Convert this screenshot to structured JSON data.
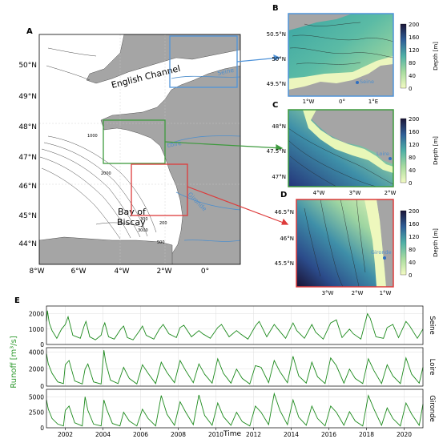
{
  "panels": {
    "A": "A",
    "B": "B",
    "C": "C",
    "D": "D",
    "E": "E"
  },
  "map_a": {
    "lon_ticks": [
      "8°W",
      "6°W",
      "4°W",
      "2°W",
      "0°"
    ],
    "lat_ticks": [
      "44°N",
      "45°N",
      "46°N",
      "47°N",
      "48°N",
      "49°N",
      "50°N"
    ],
    "labels": {
      "channel": "English Channel",
      "bay1": "Bay of",
      "bay2": "Biscay",
      "loire": "Loire",
      "gironde": "Gironde",
      "seine": "Seine"
    },
    "box_colors": {
      "B": "#4f93d9",
      "C": "#3d9a3d",
      "D": "#dd3b3b"
    },
    "contours": [
      "200",
      "300",
      "500",
      "1000",
      "2000",
      "3000"
    ]
  },
  "inset_b": {
    "lon_ticks": [
      "1°W",
      "0°",
      "1°E"
    ],
    "lat_ticks": [
      "49.5°N",
      "50°N",
      "50.5°N"
    ],
    "river": "Seine",
    "cbar_ticks": [
      "0",
      "40",
      "80",
      "120",
      "160",
      "200"
    ],
    "cbar_label": "Depth [m]"
  },
  "inset_c": {
    "lon_ticks": [
      "4°W",
      "3°W",
      "2°W"
    ],
    "lat_ticks": [
      "47°N",
      "47.5°N",
      "48°N"
    ],
    "river": "Loire",
    "cbar_ticks": [
      "0",
      "40",
      "80",
      "120",
      "160",
      "200"
    ],
    "cbar_label": "Depth [m]"
  },
  "inset_d": {
    "lon_ticks": [
      "3°W",
      "2°W",
      "1°W"
    ],
    "lat_ticks": [
      "45.5°N",
      "46°N",
      "46.5°N"
    ],
    "river": "Gironde",
    "cbar_ticks": [
      "0",
      "40",
      "80",
      "120",
      "160",
      "200"
    ],
    "cbar_label": "Depth [m]"
  },
  "colors": {
    "land": "#a5a5a5",
    "runoff_line": "#1d8a1d",
    "ylabel": "#2e9a2e",
    "river_blue": "#4f8fcc"
  },
  "chart_data": {
    "type": "line",
    "xlabel": "Time",
    "ylabel": "Runoff [m³/s]",
    "x_ticks": [
      "2002",
      "2004",
      "2006",
      "2008",
      "2010",
      "2012",
      "2014",
      "2016",
      "2018",
      "2020"
    ],
    "xlim": [
      2001,
      2021
    ],
    "series": [
      {
        "name": "Seine",
        "ylim": [
          0,
          2500
        ],
        "yticks": [
          0,
          1000,
          2000
        ],
        "x": [
          2001.0,
          2001.05,
          2001.15,
          2001.3,
          2001.55,
          2001.8,
          2002.0,
          2002.15,
          2002.4,
          2002.8,
          2003.0,
          2003.1,
          2003.3,
          2003.6,
          2003.9,
          2004.0,
          2004.1,
          2004.3,
          2004.6,
          2004.95,
          2005.1,
          2005.3,
          2005.6,
          2005.95,
          2006.1,
          2006.3,
          2006.7,
          2007.0,
          2007.2,
          2007.5,
          2007.9,
          2008.1,
          2008.3,
          2008.7,
          2009.1,
          2009.3,
          2009.7,
          2010.1,
          2010.3,
          2010.7,
          2011.1,
          2011.3,
          2011.7,
          2012.1,
          2012.3,
          2012.7,
          2013.1,
          2013.3,
          2013.7,
          2014.1,
          2014.3,
          2014.7,
          2015.1,
          2015.3,
          2015.7,
          2016.1,
          2016.4,
          2016.7,
          2017.1,
          2017.3,
          2017.7,
          2018.05,
          2018.2,
          2018.5,
          2018.9,
          2019.1,
          2019.4,
          2019.7,
          2020.1,
          2020.3,
          2020.7,
          2021.0
        ],
        "values": [
          1500,
          2200,
          1400,
          900,
          400,
          1000,
          1300,
          1800,
          600,
          400,
          1200,
          1500,
          500,
          300,
          600,
          1100,
          1400,
          500,
          350,
          1000,
          1200,
          450,
          300,
          900,
          1200,
          600,
          350,
          1000,
          1300,
          700,
          450,
          1100,
          1250,
          500,
          900,
          700,
          400,
          1100,
          1300,
          500,
          900,
          700,
          350,
          1200,
          1500,
          500,
          1300,
          1000,
          400,
          1400,
          900,
          400,
          1300,
          800,
          350,
          1400,
          1600,
          450,
          1000,
          700,
          350,
          2000,
          1700,
          500,
          400,
          1100,
          1300,
          450,
          1500,
          1200,
          400,
          1000
        ]
      },
      {
        "name": "Loire",
        "ylim": [
          0,
          4500
        ],
        "yticks": [
          0,
          2000,
          4000
        ],
        "x": [
          2001.0,
          2001.1,
          2001.3,
          2001.6,
          2001.9,
          2002.0,
          2002.2,
          2002.5,
          2002.9,
          2003.05,
          2003.2,
          2003.5,
          2003.9,
          2004.05,
          2004.15,
          2004.4,
          2004.8,
          2005.1,
          2005.4,
          2005.8,
          2006.1,
          2006.4,
          2006.8,
          2007.1,
          2007.4,
          2007.8,
          2008.1,
          2008.4,
          2008.8,
          2009.1,
          2009.4,
          2009.8,
          2010.1,
          2010.4,
          2010.8,
          2011.1,
          2011.4,
          2011.8,
          2012.1,
          2012.4,
          2012.8,
          2013.1,
          2013.4,
          2013.8,
          2014.1,
          2014.4,
          2014.8,
          2015.1,
          2015.4,
          2015.8,
          2016.1,
          2016.4,
          2016.8,
          2017.1,
          2017.4,
          2017.8,
          2018.1,
          2018.4,
          2018.8,
          2019.1,
          2019.4,
          2019.8,
          2020.1,
          2020.4,
          2020.8,
          2021.0
        ],
        "values": [
          3800,
          2600,
          1500,
          500,
          300,
          2500,
          3000,
          600,
          250,
          2000,
          2600,
          500,
          250,
          4200,
          2800,
          700,
          300,
          2200,
          900,
          250,
          2500,
          1500,
          300,
          2800,
          1600,
          400,
          3000,
          1800,
          400,
          2600,
          1400,
          350,
          3200,
          1500,
          350,
          2000,
          900,
          250,
          2400,
          2200,
          400,
          3000,
          1700,
          400,
          3500,
          1200,
          350,
          2800,
          1100,
          300,
          3300,
          2400,
          350,
          2000,
          900,
          300,
          3200,
          1800,
          300,
          2500,
          1200,
          300,
          3300,
          1400,
          350,
          2200
        ]
      },
      {
        "name": "Gironde",
        "ylim": [
          0,
          6200
        ],
        "yticks": [
          0,
          2500,
          5000
        ],
        "x": [
          2001.0,
          2001.1,
          2001.3,
          2001.6,
          2001.9,
          2002.0,
          2002.2,
          2002.5,
          2002.9,
          2003.05,
          2003.2,
          2003.5,
          2003.9,
          2004.05,
          2004.2,
          2004.5,
          2004.9,
          2005.1,
          2005.4,
          2005.8,
          2006.1,
          2006.4,
          2006.8,
          2007.1,
          2007.4,
          2007.8,
          2008.1,
          2008.4,
          2008.8,
          2009.1,
          2009.4,
          2009.8,
          2010.1,
          2010.4,
          2010.8,
          2011.1,
          2011.4,
          2011.8,
          2012.1,
          2012.4,
          2012.8,
          2013.1,
          2013.4,
          2013.8,
          2014.1,
          2014.4,
          2014.8,
          2015.1,
          2015.4,
          2015.8,
          2016.1,
          2016.4,
          2016.8,
          2017.1,
          2017.4,
          2017.8,
          2018.1,
          2018.4,
          2018.8,
          2019.1,
          2019.4,
          2019.8,
          2020.1,
          2020.4,
          2020.8,
          2021.0
        ],
        "values": [
          4500,
          3000,
          1500,
          600,
          300,
          2800,
          3500,
          800,
          300,
          5000,
          2800,
          600,
          300,
          4500,
          3000,
          700,
          300,
          2500,
          1100,
          300,
          3000,
          1500,
          300,
          5200,
          2200,
          400,
          4200,
          2500,
          500,
          5300,
          2000,
          400,
          4000,
          1800,
          400,
          2500,
          1000,
          300,
          3500,
          2500,
          500,
          5500,
          2800,
          500,
          4500,
          1700,
          400,
          3500,
          1500,
          300,
          3500,
          2500,
          400,
          2600,
          1100,
          300,
          5200,
          3000,
          400,
          3200,
          1500,
          300,
          4000,
          2200,
          400,
          3800
        ]
      }
    ]
  }
}
